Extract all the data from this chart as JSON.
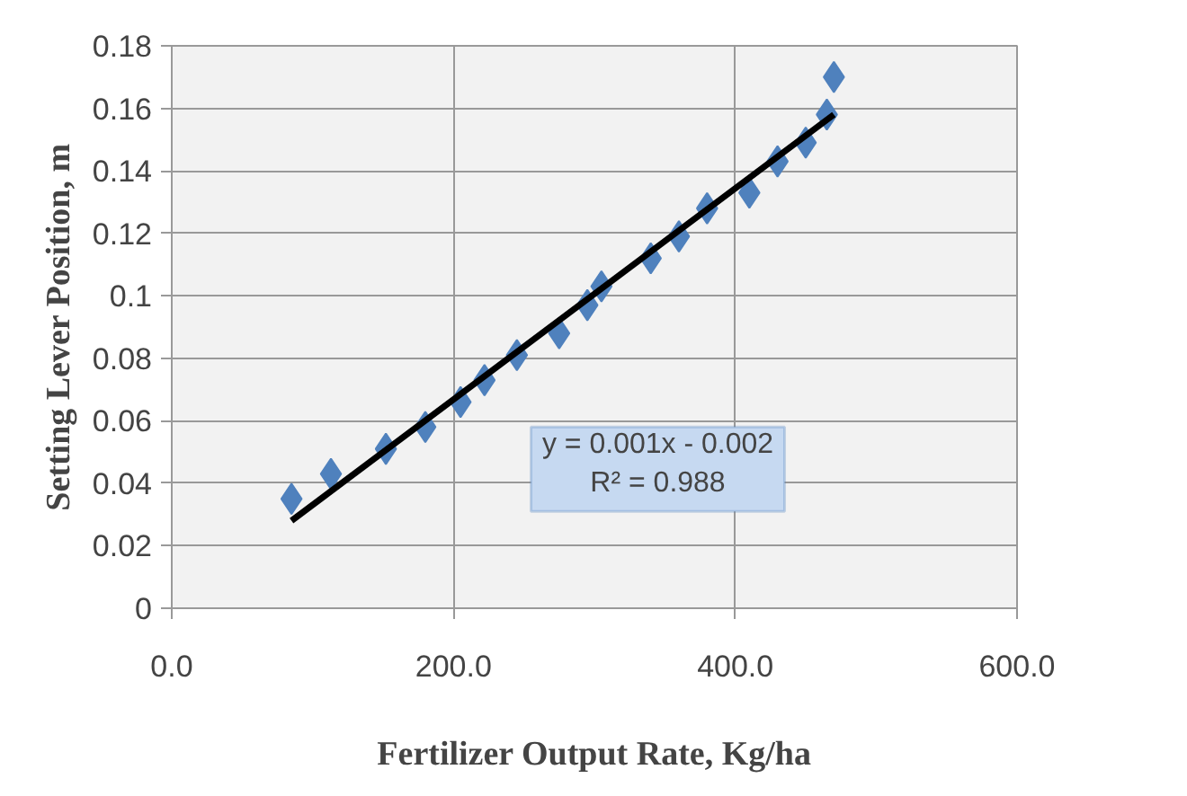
{
  "chart_data": {
    "type": "scatter",
    "xlabel": "Fertilizer Output Rate, Kg/ha",
    "ylabel": "Setting Lever Position, m",
    "series": [
      {
        "color": "#4f81bd",
        "marker": "diamond",
        "x": [
          85,
          113,
          152,
          180,
          205,
          222,
          245,
          275,
          295,
          305,
          340,
          360,
          380,
          410,
          430,
          450,
          465,
          470
        ],
        "values": [
          0.035,
          0.043,
          0.051,
          0.058,
          0.066,
          0.073,
          0.081,
          0.088,
          0.097,
          0.103,
          0.112,
          0.119,
          0.128,
          0.133,
          0.143,
          0.149,
          0.158,
          0.17
        ]
      },
      {
        "type": "line",
        "color": "#000000",
        "x": [
          85,
          470
        ],
        "values": [
          0.028,
          0.158
        ]
      }
    ],
    "annotations": [
      "y = 0.001x - 0.002",
      "R² = 0.988"
    ],
    "xlim": [
      0,
      600
    ],
    "ylim": [
      0,
      0.18
    ],
    "xticks": [
      {
        "value": 0,
        "label": "0.0"
      },
      {
        "value": 200,
        "label": "200.0"
      },
      {
        "value": 400,
        "label": "400.0"
      },
      {
        "value": 600,
        "label": "600.0"
      }
    ],
    "yticks": [
      0,
      0.02,
      0.04,
      0.06,
      0.08,
      0.1,
      0.12,
      0.14,
      0.16,
      0.18
    ],
    "grid": true
  }
}
